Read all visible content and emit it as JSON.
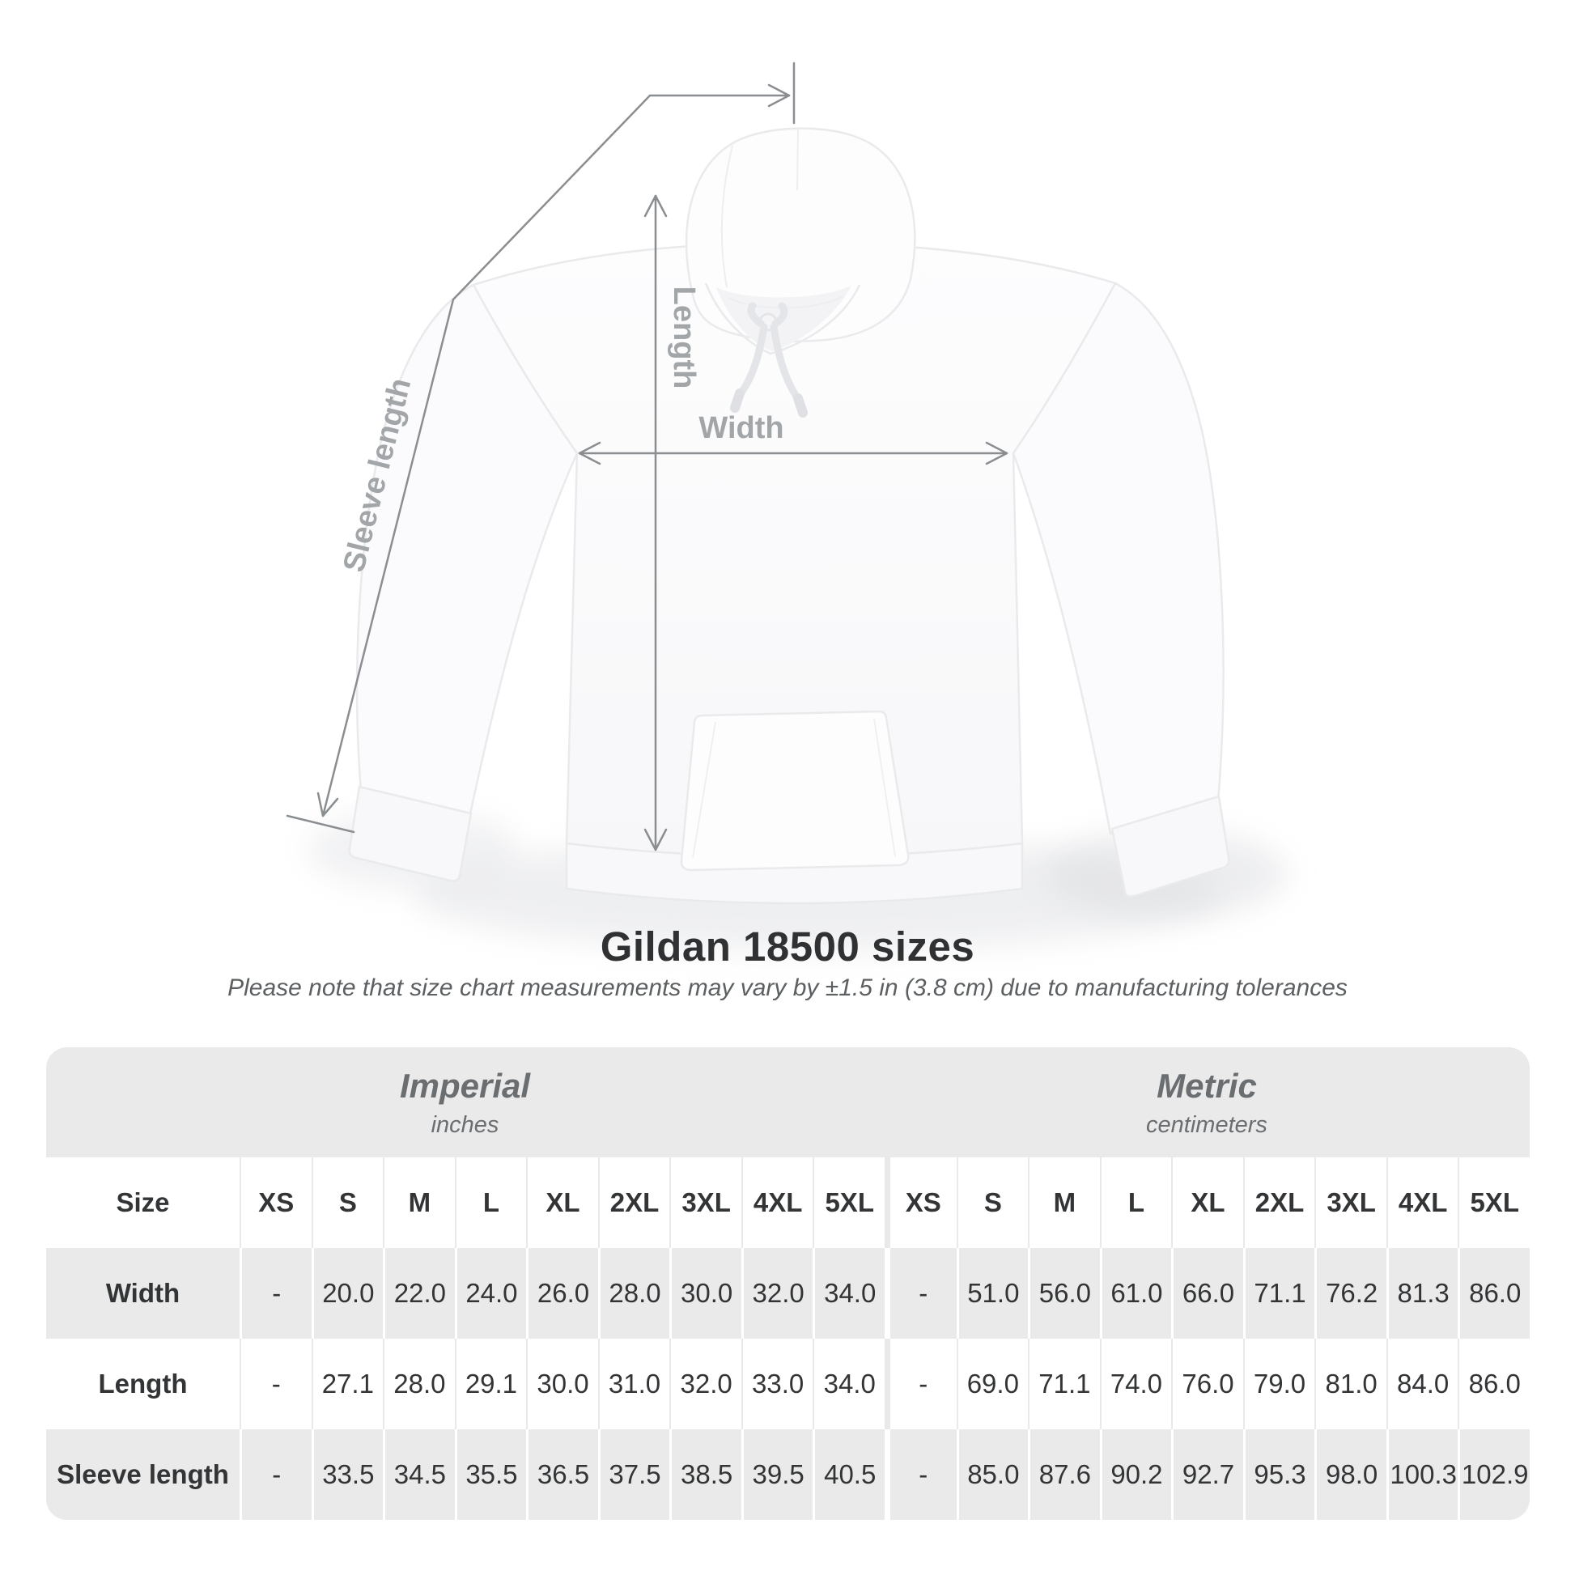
{
  "diagram": {
    "labels": {
      "length": "Length",
      "width": "Width",
      "sleeve_length": "Sleeve length"
    }
  },
  "heading": {
    "title": "Gildan 18500 sizes",
    "subtitle": "Please note that size chart measurements may vary by ±1.5 in (3.8 cm) due to manufacturing tolerances"
  },
  "size_table": {
    "units": [
      {
        "system": "Imperial",
        "unit": "inches"
      },
      {
        "system": "Metric",
        "unit": "centimeters"
      }
    ],
    "corner_label": "Size",
    "sizes": [
      "XS",
      "S",
      "M",
      "L",
      "XL",
      "2XL",
      "3XL",
      "4XL",
      "5XL"
    ],
    "rows": [
      {
        "label": "Width",
        "imperial": [
          "-",
          "20.0",
          "22.0",
          "24.0",
          "26.0",
          "28.0",
          "30.0",
          "32.0",
          "34.0"
        ],
        "metric": [
          "-",
          "51.0",
          "56.0",
          "61.0",
          "66.0",
          "71.1",
          "76.2",
          "81.3",
          "86.0"
        ]
      },
      {
        "label": "Length",
        "imperial": [
          "-",
          "27.1",
          "28.0",
          "29.1",
          "30.0",
          "31.0",
          "32.0",
          "33.0",
          "34.0"
        ],
        "metric": [
          "-",
          "69.0",
          "71.1",
          "74.0",
          "76.0",
          "79.0",
          "81.0",
          "84.0",
          "86.0"
        ]
      },
      {
        "label": "Sleeve length",
        "imperial": [
          "-",
          "33.5",
          "34.5",
          "35.5",
          "36.5",
          "37.5",
          "38.5",
          "39.5",
          "40.5"
        ],
        "metric": [
          "-",
          "85.0",
          "87.6",
          "90.2",
          "92.7",
          "95.3",
          "98.0",
          "100.3",
          "102.9"
        ]
      }
    ]
  },
  "colors": {
    "stripe_gray": "#eaeaeb",
    "measure_line": "#8b8e91",
    "measure_label": "#a3a6a9",
    "title_text": "#2f3133",
    "subtitle_text": "#5d6062",
    "value_text": "#323436"
  }
}
